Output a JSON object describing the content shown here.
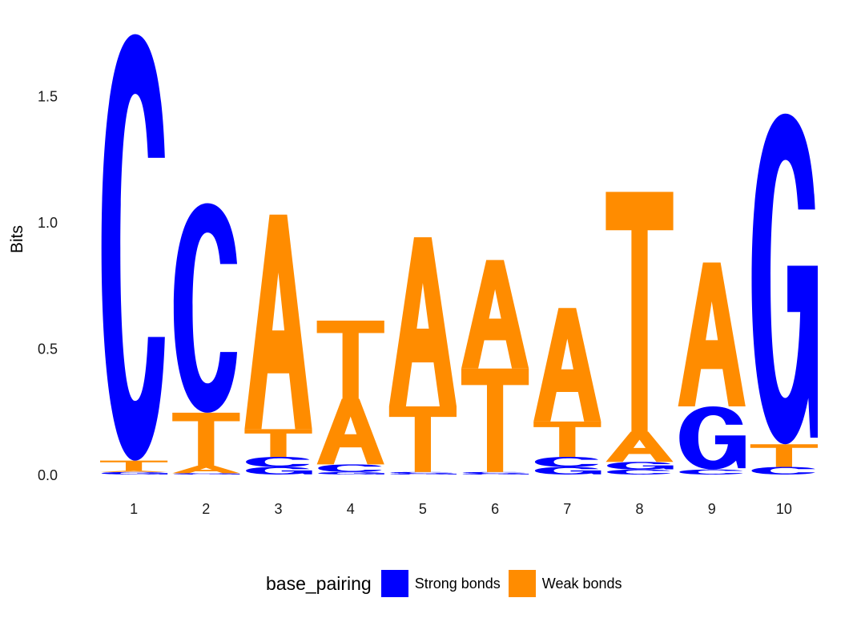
{
  "chart_data": {
    "type": "sequence-logo",
    "ylabel": "Bits",
    "ylim": [
      0,
      1.75
    ],
    "yticks": [
      "0.0",
      "0.5",
      "1.0",
      "1.5"
    ],
    "ytick_values": [
      0,
      0.5,
      1.0,
      1.5
    ],
    "positions": [
      "1",
      "2",
      "3",
      "4",
      "5",
      "6",
      "7",
      "8",
      "9",
      "10"
    ],
    "legend": {
      "title": "base_pairing",
      "items": [
        {
          "label": "Strong bonds",
          "color": "#0000ff"
        },
        {
          "label": "Weak bonds",
          "color": "#ff8c00"
        }
      ]
    },
    "letter_colors": {
      "C": "#0000ff",
      "G": "#0000ff",
      "A": "#ff8c00",
      "T": "#ff8c00"
    },
    "stacks": [
      [
        {
          "letter": "G",
          "height": 0.01
        },
        {
          "letter": "A",
          "height": 0.005
        },
        {
          "letter": "T",
          "height": 0.04
        },
        {
          "letter": "C",
          "height": 1.69
        }
      ],
      [
        {
          "letter": "G",
          "height": 0.005
        },
        {
          "letter": "A",
          "height": 0.03
        },
        {
          "letter": "T",
          "height": 0.21
        },
        {
          "letter": "C",
          "height": 0.83
        }
      ],
      [
        {
          "letter": "G",
          "height": 0.03
        },
        {
          "letter": "C",
          "height": 0.04
        },
        {
          "letter": "T",
          "height": 0.11
        },
        {
          "letter": "A",
          "height": 0.85
        }
      ],
      [
        {
          "letter": "G",
          "height": 0.01
        },
        {
          "letter": "C",
          "height": 0.03
        },
        {
          "letter": "A",
          "height": 0.26
        },
        {
          "letter": "T",
          "height": 0.31
        }
      ],
      [
        {
          "letter": "G",
          "height": 0.005
        },
        {
          "letter": "C",
          "height": 0.005
        },
        {
          "letter": "T",
          "height": 0.26
        },
        {
          "letter": "A",
          "height": 0.67
        }
      ],
      [
        {
          "letter": "G",
          "height": 0.005
        },
        {
          "letter": "C",
          "height": 0.005
        },
        {
          "letter": "T",
          "height": 0.41
        },
        {
          "letter": "A",
          "height": 0.43
        }
      ],
      [
        {
          "letter": "G",
          "height": 0.03
        },
        {
          "letter": "C",
          "height": 0.04
        },
        {
          "letter": "T",
          "height": 0.14
        },
        {
          "letter": "A",
          "height": 0.45
        }
      ],
      [
        {
          "letter": "C",
          "height": 0.02
        },
        {
          "letter": "G",
          "height": 0.03
        },
        {
          "letter": "A",
          "height": 0.12
        },
        {
          "letter": "T",
          "height": 0.95
        }
      ],
      [
        {
          "letter": "C",
          "height": 0.02
        },
        {
          "letter": "G",
          "height": 0.25
        },
        {
          "letter": "A",
          "height": 0.57
        }
      ],
      [
        {
          "letter": "C",
          "height": 0.03
        },
        {
          "letter": "T",
          "height": 0.09
        },
        {
          "letter": "G",
          "height": 1.31
        }
      ]
    ]
  }
}
